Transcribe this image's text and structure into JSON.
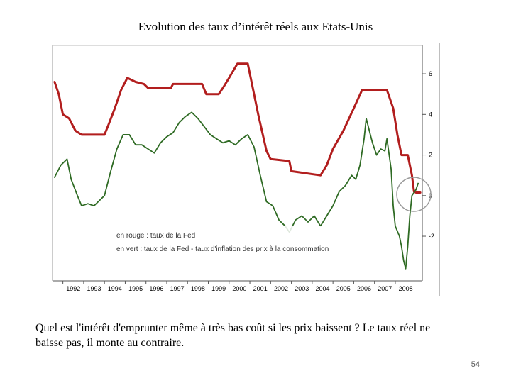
{
  "slide": {
    "title": "Evolution des taux d’intérêt réels aux Etats-Unis",
    "caption": "Quel est l'intérêt d'emprunter même à très bas coût si les prix baissent ? Le taux réel ne baisse pas, il monte au contraire.",
    "page_number": "54"
  },
  "chart_data": {
    "type": "line",
    "title": "",
    "xlabel": "",
    "ylabel": "",
    "xlim": [
      1991.5,
      2009.3
    ],
    "ylim": [
      -4.2,
      7.4
    ],
    "x_ticks": [
      "1992",
      "1993",
      "1994",
      "1995",
      "1996",
      "1997",
      "1998",
      "1999",
      "2000",
      "2001",
      "2002",
      "2003",
      "2004",
      "2005",
      "2006",
      "2007",
      "2008"
    ],
    "y_ticks": [
      6,
      4,
      2,
      0,
      -2
    ],
    "y_tick_labels": [
      "6",
      "4",
      "2",
      "0",
      "-2"
    ],
    "grid": false,
    "legend": {
      "position": "lower-left",
      "entries": [
        "en rouge : taux de la Fed",
        "en vert : taux de la Fed - taux d'inflation des prix à la consommation"
      ]
    },
    "series": [
      {
        "name": "taux de la Fed",
        "color": "#b21e1e",
        "points": [
          [
            1991.6,
            5.6
          ],
          [
            1991.8,
            5.0
          ],
          [
            1992.0,
            4.0
          ],
          [
            1992.3,
            3.8
          ],
          [
            1992.6,
            3.2
          ],
          [
            1992.9,
            3.0
          ],
          [
            1994.0,
            3.0
          ],
          [
            1994.2,
            3.5
          ],
          [
            1994.5,
            4.3
          ],
          [
            1994.8,
            5.2
          ],
          [
            1995.1,
            5.8
          ],
          [
            1995.5,
            5.6
          ],
          [
            1995.9,
            5.5
          ],
          [
            1996.1,
            5.3
          ],
          [
            1997.2,
            5.3
          ],
          [
            1997.3,
            5.5
          ],
          [
            1998.7,
            5.5
          ],
          [
            1998.9,
            5.0
          ],
          [
            1999.5,
            5.0
          ],
          [
            1999.7,
            5.3
          ],
          [
            2000.0,
            5.8
          ],
          [
            2000.4,
            6.5
          ],
          [
            2000.9,
            6.5
          ],
          [
            2001.1,
            5.5
          ],
          [
            2001.4,
            4.0
          ],
          [
            2001.8,
            2.2
          ],
          [
            2002.0,
            1.8
          ],
          [
            2002.9,
            1.7
          ],
          [
            2003.0,
            1.2
          ],
          [
            2004.4,
            1.0
          ],
          [
            2004.7,
            1.5
          ],
          [
            2005.0,
            2.3
          ],
          [
            2005.5,
            3.2
          ],
          [
            2006.0,
            4.3
          ],
          [
            2006.4,
            5.2
          ],
          [
            2007.6,
            5.2
          ],
          [
            2007.9,
            4.3
          ],
          [
            2008.1,
            3.0
          ],
          [
            2008.3,
            2.0
          ],
          [
            2008.6,
            2.0
          ],
          [
            2008.8,
            1.0
          ],
          [
            2008.9,
            0.2
          ],
          [
            2009.0,
            0.15
          ],
          [
            2009.2,
            0.15
          ]
        ]
      },
      {
        "name": "taux de la Fed - taux d'inflation des prix à la consommation",
        "color": "#2f6b24",
        "points": [
          [
            1991.6,
            0.9
          ],
          [
            1991.9,
            1.5
          ],
          [
            1992.2,
            1.8
          ],
          [
            1992.4,
            0.8
          ],
          [
            1992.7,
            0.0
          ],
          [
            1992.9,
            -0.5
          ],
          [
            1993.2,
            -0.4
          ],
          [
            1993.5,
            -0.5
          ],
          [
            1993.8,
            -0.2
          ],
          [
            1994.0,
            0.0
          ],
          [
            1994.3,
            1.2
          ],
          [
            1994.6,
            2.3
          ],
          [
            1994.9,
            3.0
          ],
          [
            1995.2,
            3.0
          ],
          [
            1995.5,
            2.5
          ],
          [
            1995.8,
            2.5
          ],
          [
            1996.1,
            2.3
          ],
          [
            1996.4,
            2.1
          ],
          [
            1996.7,
            2.6
          ],
          [
            1997.0,
            2.9
          ],
          [
            1997.3,
            3.1
          ],
          [
            1997.6,
            3.6
          ],
          [
            1997.9,
            3.9
          ],
          [
            1998.2,
            4.1
          ],
          [
            1998.5,
            3.8
          ],
          [
            1998.8,
            3.4
          ],
          [
            1999.1,
            3.0
          ],
          [
            1999.4,
            2.8
          ],
          [
            1999.7,
            2.6
          ],
          [
            2000.0,
            2.7
          ],
          [
            2000.3,
            2.5
          ],
          [
            2000.6,
            2.8
          ],
          [
            2000.9,
            3.0
          ],
          [
            2001.2,
            2.4
          ],
          [
            2001.5,
            1.0
          ],
          [
            2001.8,
            -0.3
          ],
          [
            2002.1,
            -0.5
          ],
          [
            2002.4,
            -1.2
          ],
          [
            2002.7,
            -1.5
          ],
          [
            2002.9,
            -1.8
          ],
          [
            2003.2,
            -1.2
          ],
          [
            2003.5,
            -1.0
          ],
          [
            2003.8,
            -1.3
          ],
          [
            2004.1,
            -1.0
          ],
          [
            2004.4,
            -1.5
          ],
          [
            2004.7,
            -1.0
          ],
          [
            2005.0,
            -0.5
          ],
          [
            2005.3,
            0.2
          ],
          [
            2005.6,
            0.5
          ],
          [
            2005.9,
            1.0
          ],
          [
            2006.1,
            0.8
          ],
          [
            2006.3,
            1.5
          ],
          [
            2006.5,
            2.8
          ],
          [
            2006.6,
            3.8
          ],
          [
            2006.8,
            3.0
          ],
          [
            2006.9,
            2.6
          ],
          [
            2007.1,
            2.0
          ],
          [
            2007.3,
            2.3
          ],
          [
            2007.5,
            2.2
          ],
          [
            2007.6,
            2.8
          ],
          [
            2007.8,
            1.3
          ],
          [
            2007.9,
            -0.5
          ],
          [
            2008.0,
            -1.5
          ],
          [
            2008.2,
            -2.0
          ],
          [
            2008.3,
            -2.5
          ],
          [
            2008.4,
            -3.2
          ],
          [
            2008.5,
            -3.6
          ],
          [
            2008.6,
            -2.5
          ],
          [
            2008.7,
            -1.0
          ],
          [
            2008.8,
            0.0
          ],
          [
            2009.0,
            0.3
          ],
          [
            2009.1,
            0.6
          ]
        ]
      }
    ]
  }
}
